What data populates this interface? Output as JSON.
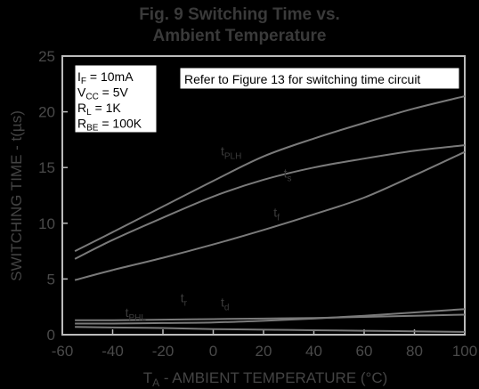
{
  "chart_data": {
    "type": "line",
    "title": [
      "Fig. 9  Switching Time vs.",
      "Ambient Temperature"
    ],
    "xlabel": [
      "T",
      "A",
      " - AMBIENT TEMPERATURE (°C)"
    ],
    "ylabel": "SWITCHING TIME - t(µs)",
    "xlim": [
      -60,
      100
    ],
    "ylim": [
      0,
      25
    ],
    "xticks": [
      -60,
      -40,
      -20,
      0,
      20,
      40,
      60,
      80,
      100
    ],
    "yticks": [
      0,
      5,
      10,
      15,
      20,
      25
    ],
    "conditions": [
      {
        "main": "I",
        "sub": "F",
        "rest": " = 10mA"
      },
      {
        "main": "V",
        "sub": "CC",
        "rest": " = 5V"
      },
      {
        "main": "R",
        "sub": "L",
        "rest": " = 1K"
      },
      {
        "main": "R",
        "sub": "BE",
        "rest": " = 100K"
      }
    ],
    "note": "Refer to Figure 13 for switching time circuit",
    "series": [
      {
        "label_main": "t",
        "label_sub": "PLH",
        "x": [
          -55,
          -40,
          -20,
          0,
          20,
          40,
          60,
          80,
          100
        ],
        "y": [
          7.5,
          9.2,
          11.5,
          13.8,
          16.0,
          17.6,
          19.0,
          20.3,
          21.4
        ]
      },
      {
        "label_main": "t",
        "label_sub": "s",
        "x": [
          -55,
          -40,
          -20,
          0,
          20,
          40,
          60,
          80,
          100
        ],
        "y": [
          6.8,
          8.5,
          10.5,
          12.4,
          13.9,
          15.0,
          15.8,
          16.5,
          17.0
        ]
      },
      {
        "label_main": "t",
        "label_sub": "f",
        "x": [
          -55,
          -40,
          -20,
          0,
          20,
          40,
          60,
          80,
          100
        ],
        "y": [
          4.9,
          5.8,
          6.9,
          8.1,
          9.4,
          10.8,
          12.3,
          14.3,
          16.4
        ]
      },
      {
        "label_main": "t",
        "label_sub": "PHL",
        "x": [
          -55,
          -40,
          -20,
          0,
          20,
          40,
          60,
          80,
          100
        ],
        "y": [
          1.3,
          1.3,
          1.35,
          1.4,
          1.45,
          1.5,
          1.6,
          1.7,
          1.8
        ]
      },
      {
        "label_main": "t",
        "label_sub": "r",
        "x": [
          -55,
          -40,
          -20,
          0,
          20,
          40,
          60,
          80,
          100
        ],
        "y": [
          1.0,
          1.0,
          1.05,
          1.1,
          1.25,
          1.45,
          1.7,
          2.0,
          2.3
        ]
      },
      {
        "label_main": "t",
        "label_sub": "d",
        "x": [
          -55,
          -40,
          -20,
          0,
          20,
          40,
          60,
          80,
          100
        ],
        "y": [
          0.7,
          0.65,
          0.6,
          0.5,
          0.45,
          0.4,
          0.35,
          0.3,
          0.25
        ]
      }
    ]
  }
}
